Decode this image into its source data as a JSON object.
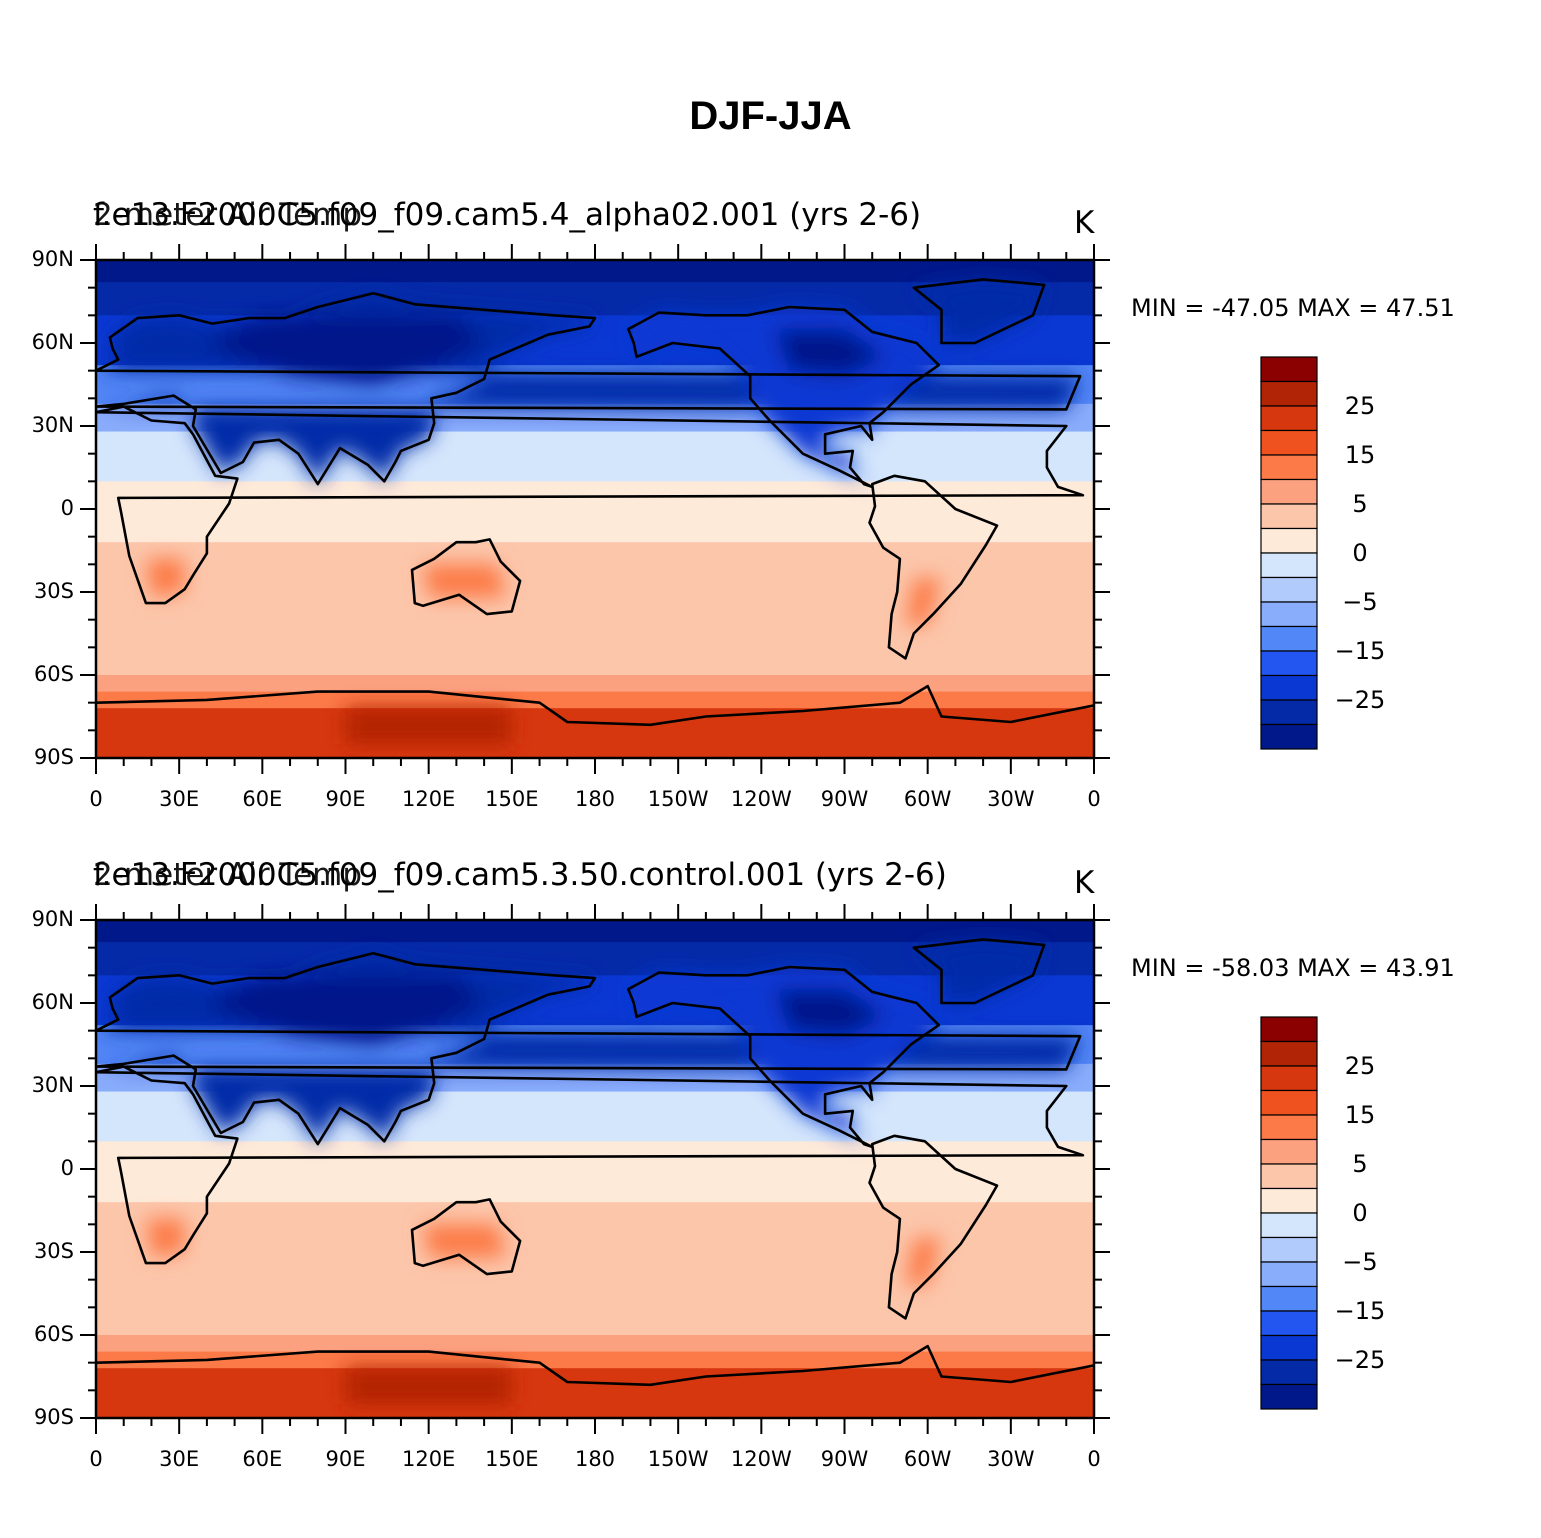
{
  "figure": {
    "title": "DJF-JJA"
  },
  "axes": {
    "lat_ticks": [
      "90N",
      "60N",
      "30N",
      "0",
      "30S",
      "60S",
      "90S"
    ],
    "lon_ticks": [
      "0",
      "30E",
      "60E",
      "90E",
      "120E",
      "150E",
      "180",
      "150W",
      "120W",
      "90W",
      "60W",
      "30W",
      "0"
    ]
  },
  "colorbar": {
    "levels": [
      "25",
      "15",
      "5",
      "0",
      "-5",
      "-15",
      "-25"
    ],
    "colors": [
      "#8b0000",
      "#b22406",
      "#d7370f",
      "#f0521f",
      "#fc7a47",
      "#fca17f",
      "#fcc6ab",
      "#feead9",
      "#d3e6fc",
      "#b1ccfc",
      "#89acfb",
      "#5287f7",
      "#2355f1",
      "#0a38d3",
      "#042aa8",
      "#00188a"
    ]
  },
  "panels": [
    {
      "left_title": "2-meter Air Temp",
      "case_title": "f.e13.F2000C5.f09_f09.cam5.4_alpha02.001 (yrs 2-6)",
      "units": "K",
      "min_max": "MIN = -47.05  MAX =   47.51"
    },
    {
      "left_title": "2-meter Air Temp",
      "case_title": "f.e13.F2000C5.f09_f09.cam5.3.50.control.001 (yrs 2-6)",
      "units": "K",
      "min_max": "MIN = -58.03  MAX =   43.91"
    }
  ]
}
